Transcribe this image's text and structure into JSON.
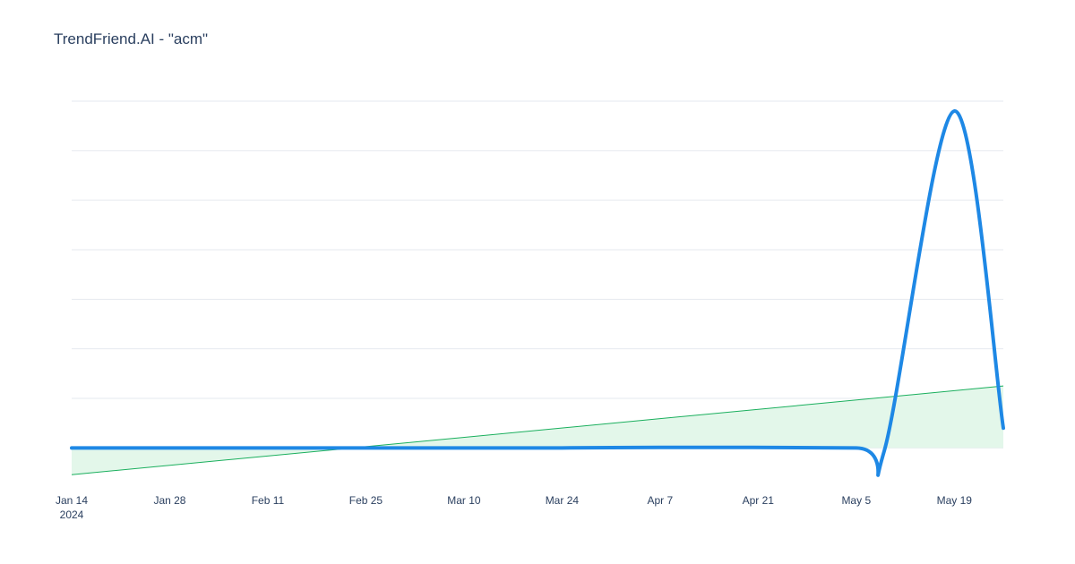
{
  "chart_data": {
    "type": "line",
    "title": "TrendFriend.AI - \"acm\"",
    "xlabel": "",
    "ylabel": "",
    "x_ticks": [
      {
        "date": "2024-01-14",
        "label": "Jan 14",
        "sublabel": "2024"
      },
      {
        "date": "2024-01-28",
        "label": "Jan 28"
      },
      {
        "date": "2024-02-11",
        "label": "Feb 11"
      },
      {
        "date": "2024-02-25",
        "label": "Feb 25"
      },
      {
        "date": "2024-03-10",
        "label": "Mar 10"
      },
      {
        "date": "2024-03-24",
        "label": "Mar 24"
      },
      {
        "date": "2024-04-07",
        "label": "Apr 7"
      },
      {
        "date": "2024-04-21",
        "label": "Apr 21"
      },
      {
        "date": "2024-05-05",
        "label": "May 5"
      },
      {
        "date": "2024-05-19",
        "label": "May 19"
      }
    ],
    "xlim": [
      "2024-01-14",
      "2024-05-26"
    ],
    "ylim": [
      -5,
      70
    ],
    "y_gridlines": [
      0,
      10,
      20,
      30,
      40,
      50,
      60,
      70
    ],
    "y_tick_labels_shown": false,
    "series": [
      {
        "color": "#1e88e5",
        "style": "smooth",
        "x": [
          "2024-01-14",
          "2024-02-25",
          "2024-03-24",
          "2024-04-07",
          "2024-05-05",
          "2024-05-09",
          "2024-05-19",
          "2024-05-26"
        ],
        "y": [
          0,
          0,
          0,
          0.1,
          0,
          -0.6,
          68,
          4
        ]
      },
      {
        "color": "#1aaf5d",
        "fill": "#e3f7ea",
        "style": "linear",
        "x": [
          "2024-01-14",
          "2024-05-26"
        ],
        "y": [
          -5.4,
          12.5
        ]
      }
    ],
    "grid": true,
    "legend": "none"
  }
}
